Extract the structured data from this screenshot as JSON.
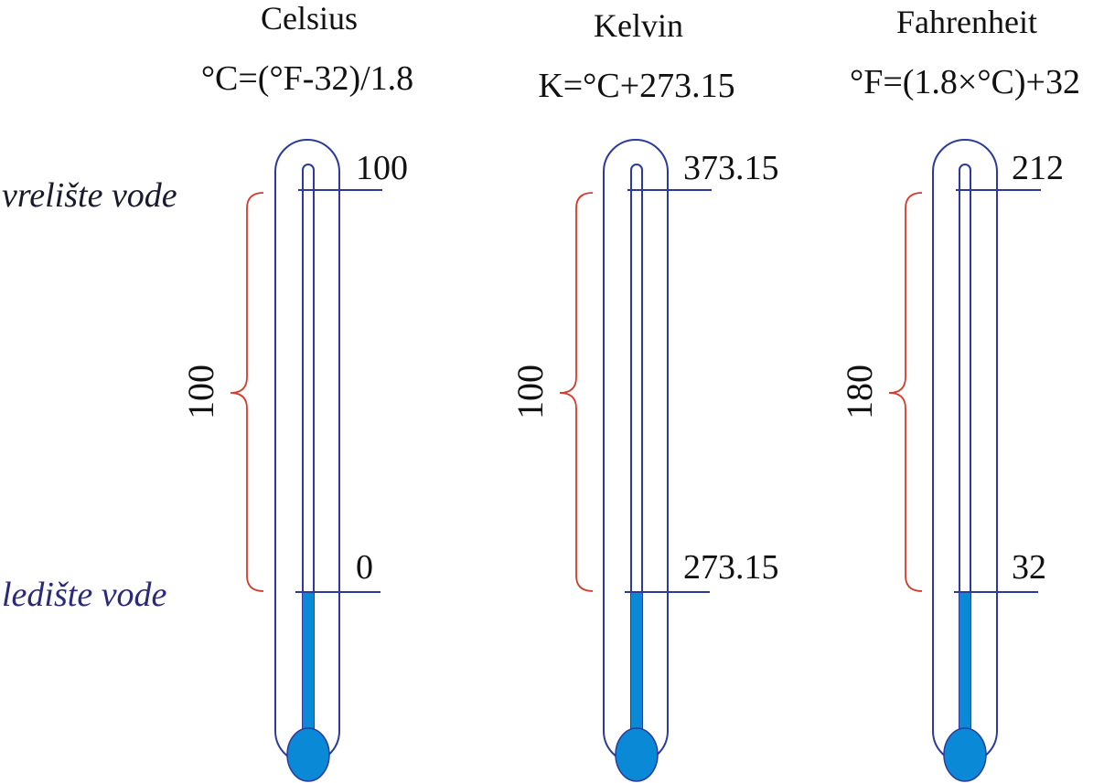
{
  "side_labels": {
    "boiling": "vrelište vode",
    "freezing": "ledište vode"
  },
  "thermometers": [
    {
      "name": "Celsius",
      "formula": "°C=(°F-32)/1.8",
      "boiling_value": "100",
      "freezing_value": "0",
      "interval": "100"
    },
    {
      "name": "Kelvin",
      "formula": "K=°C+273.15",
      "boiling_value": "373.15",
      "freezing_value": "273.15",
      "interval": "100"
    },
    {
      "name": "Fahrenheit",
      "formula": "°F=(1.8×°C)+32",
      "boiling_value": "212",
      "freezing_value": "32",
      "interval": "180"
    }
  ],
  "colors": {
    "outline": "#2b3a9c",
    "liquid": "#0a8ad6",
    "brace": "#d8392b",
    "boiling_text": "#1a1a2e",
    "freezing_text": "#2a2a7a"
  }
}
